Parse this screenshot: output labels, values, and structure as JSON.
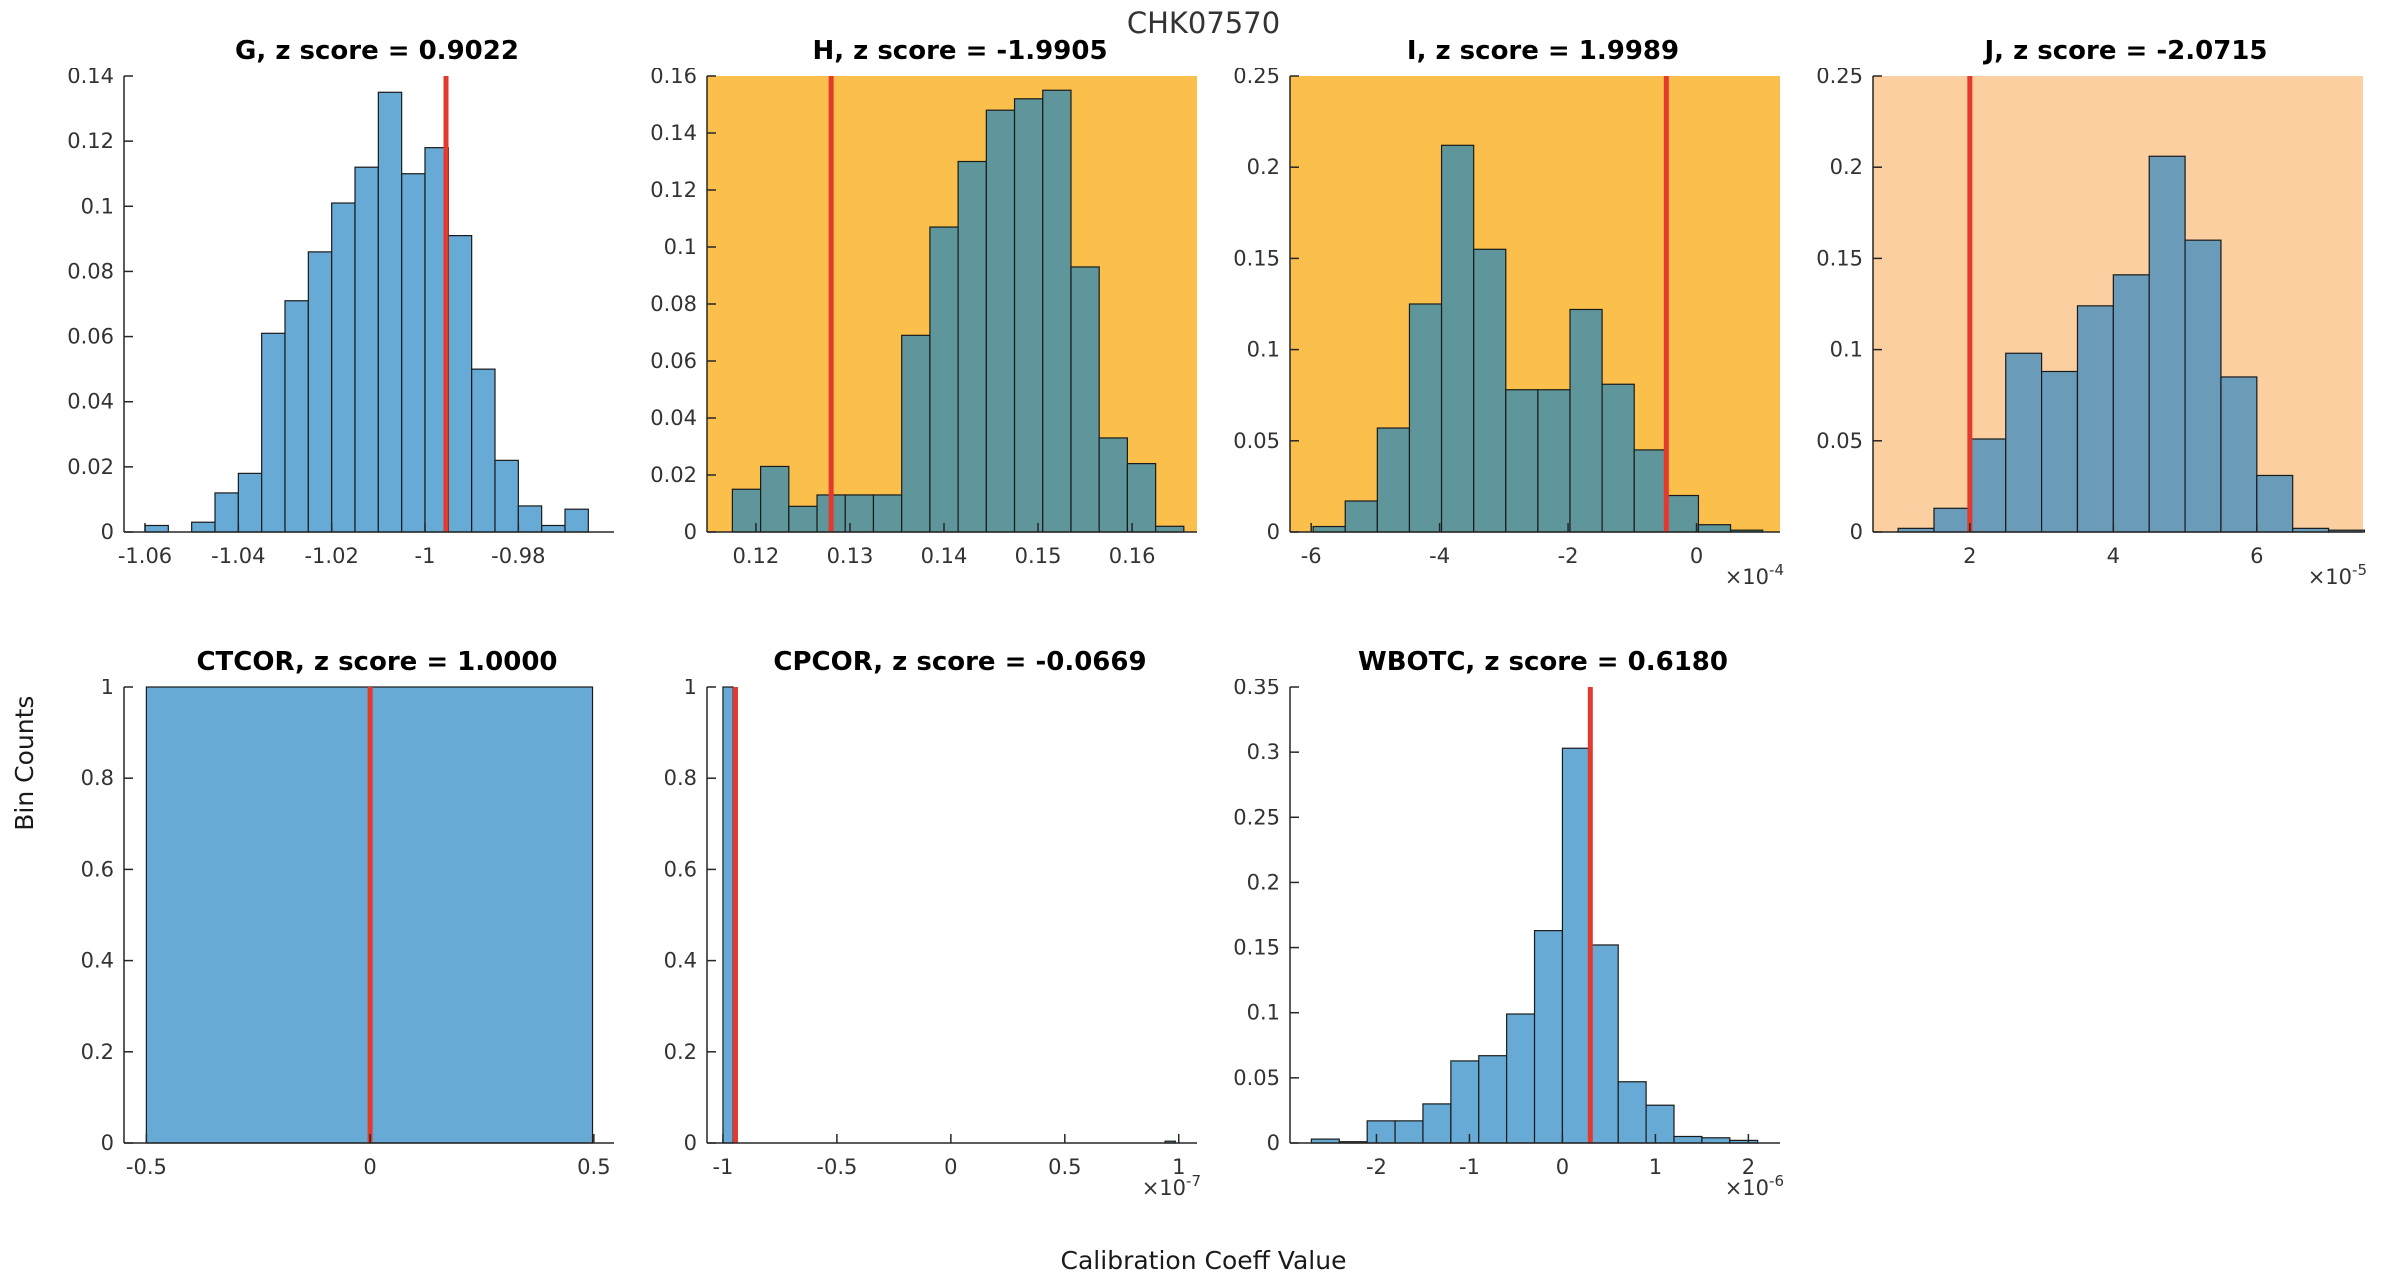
{
  "figure": {
    "title": "CHK07570",
    "xlabel": "Calibration Coeff Value",
    "ylabel": "Bin Counts"
  },
  "colors": {
    "bar_blue": "#67AAD5",
    "bar_teal_on_amber": "#5F969B",
    "bar_steel_on_peach": "#6A9BB8",
    "bg_amber": "#FBBF4B",
    "bg_peach": "#FCCFA0",
    "red_line": "#E43A2E",
    "bar_edge": "#1A1A1A",
    "axis": "#262626",
    "tick_text": "#333333"
  },
  "chart_data": [
    {
      "type": "bar",
      "name": "G",
      "title": "G, z score = 0.9022",
      "z_score": "0.9022",
      "bg": null,
      "bar_color": "#67AAD5",
      "xlim": [
        -1.0645,
        -0.9595
      ],
      "ylim": [
        0,
        0.14
      ],
      "x_start": -1.06,
      "bin_width": 0.005,
      "values": [
        0.002,
        0,
        0.003,
        0.012,
        0.018,
        0.061,
        0.071,
        0.086,
        0.101,
        0.112,
        0.135,
        0.11,
        0.118,
        0.091,
        0.05,
        0.022,
        0.008,
        0.002,
        0.007
      ],
      "xticks": [
        [
          -1.06,
          "-1.06"
        ],
        [
          -1.04,
          "-1.04"
        ],
        [
          -1.02,
          "-1.02"
        ],
        [
          -1,
          "-1"
        ],
        [
          -0.98,
          "-0.98"
        ]
      ],
      "yticks": [
        [
          0,
          "0"
        ],
        [
          0.02,
          "0.02"
        ],
        [
          0.04,
          "0.04"
        ],
        [
          0.06,
          "0.06"
        ],
        [
          0.08,
          "0.08"
        ],
        [
          0.1,
          "0.1"
        ],
        [
          0.12,
          "0.12"
        ],
        [
          0.14,
          "0.14"
        ]
      ],
      "x_exponent": null,
      "red_line": -0.9955
    },
    {
      "type": "bar",
      "name": "H",
      "title": "H, z score = -1.9905",
      "z_score": "-1.9905",
      "bg": "#FBBF4B",
      "bar_color": "#5F969B",
      "xlim": [
        0.1148,
        0.1669
      ],
      "ylim": [
        0,
        0.16
      ],
      "x_start": 0.1175,
      "bin_width": 0.003,
      "values": [
        0.015,
        0.023,
        0.009,
        0.013,
        0.013,
        0.013,
        0.069,
        0.107,
        0.13,
        0.148,
        0.152,
        0.155,
        0.093,
        0.033,
        0.024,
        0.002
      ],
      "xticks": [
        [
          0.12,
          "0.12"
        ],
        [
          0.13,
          "0.13"
        ],
        [
          0.14,
          "0.14"
        ],
        [
          0.15,
          "0.15"
        ],
        [
          0.16,
          "0.16"
        ]
      ],
      "yticks": [
        [
          0,
          "0"
        ],
        [
          0.02,
          "0.02"
        ],
        [
          0.04,
          "0.04"
        ],
        [
          0.06,
          "0.06"
        ],
        [
          0.08,
          "0.08"
        ],
        [
          0.1,
          "0.1"
        ],
        [
          0.12,
          "0.12"
        ],
        [
          0.14,
          "0.14"
        ],
        [
          0.16,
          "0.16"
        ]
      ],
      "x_exponent": null,
      "red_line": 0.128
    },
    {
      "type": "bar",
      "name": "I",
      "title": "I, z score = 1.9989",
      "z_score": "1.9989",
      "bg": "#FBBF4B",
      "bar_color": "#5F969B",
      "xlim": [
        -6.33,
        1.3
      ],
      "ylim": [
        0,
        0.25
      ],
      "x_start": -5.97,
      "bin_width": 0.5,
      "values": [
        0.003,
        0.017,
        0.057,
        0.125,
        0.212,
        0.155,
        0.078,
        0.078,
        0.122,
        0.081,
        0.045,
        0.02,
        0.004,
        0.001
      ],
      "xticks": [
        [
          -6,
          "-6"
        ],
        [
          -4,
          "-4"
        ],
        [
          -2,
          "-2"
        ],
        [
          0,
          "0"
        ]
      ],
      "yticks": [
        [
          0,
          "0"
        ],
        [
          0.05,
          "0.05"
        ],
        [
          0.1,
          "0.1"
        ],
        [
          0.15,
          "0.15"
        ],
        [
          0.2,
          "0.2"
        ],
        [
          0.25,
          "0.25"
        ]
      ],
      "x_exponent": "-4",
      "red_line": -0.47
    },
    {
      "type": "bar",
      "name": "J",
      "title": "J, z score = -2.0715",
      "z_score": "-2.0715",
      "bg": "#FCCFA0",
      "bar_color": "#6A9BB8",
      "xlim": [
        0.65,
        7.48
      ],
      "ylim": [
        0,
        0.25
      ],
      "x_start": 1.0,
      "bin_width": 0.5,
      "values": [
        0.002,
        0.013,
        0.051,
        0.098,
        0.088,
        0.124,
        0.141,
        0.206,
        0.16,
        0.085,
        0.031,
        0.002,
        0.001
      ],
      "xticks": [
        [
          2,
          "2"
        ],
        [
          4,
          "4"
        ],
        [
          6,
          "6"
        ]
      ],
      "yticks": [
        [
          0,
          "0"
        ],
        [
          0.05,
          "0.05"
        ],
        [
          0.1,
          "0.1"
        ],
        [
          0.15,
          "0.15"
        ],
        [
          0.2,
          "0.2"
        ],
        [
          0.25,
          "0.25"
        ]
      ],
      "x_exponent": "-5",
      "red_line": 2.0
    },
    {
      "type": "bar",
      "name": "CTCOR",
      "title": "CTCOR, z score = 1.0000",
      "z_score": "1.0000",
      "bg": null,
      "bar_color": "#67AAD5",
      "xlim": [
        -0.55,
        0.545
      ],
      "ylim": [
        0,
        1
      ],
      "x_start": -0.5,
      "bin_width": 0.997,
      "values": [
        1
      ],
      "xticks": [
        [
          -0.5,
          "-0.5"
        ],
        [
          0,
          "0"
        ],
        [
          0.5,
          "0.5"
        ]
      ],
      "yticks": [
        [
          0,
          "0"
        ],
        [
          0.2,
          "0.2"
        ],
        [
          0.4,
          "0.4"
        ],
        [
          0.6,
          "0.6"
        ],
        [
          0.8,
          "0.8"
        ],
        [
          1,
          "1"
        ]
      ],
      "x_exponent": null,
      "red_line": 0
    },
    {
      "type": "bar",
      "name": "CPCOR",
      "title": "CPCOR, z score = -0.0669",
      "z_score": "-0.0669",
      "bg": null,
      "bar_color": "#67AAD5",
      "xlim": [
        -1.07,
        1.08
      ],
      "ylim": [
        0,
        1
      ],
      "x_start": -1.0,
      "bin_width": 0.045,
      "values": [
        1
      ],
      "extra_bars": [
        {
          "x": 0.94,
          "w": 0.045,
          "h": 0.004
        }
      ],
      "xticks": [
        [
          -1,
          "-1"
        ],
        [
          -0.5,
          "-0.5"
        ],
        [
          0,
          "0"
        ],
        [
          0.5,
          "0.5"
        ],
        [
          1,
          "1"
        ]
      ],
      "yticks": [
        [
          0,
          "0"
        ],
        [
          0.2,
          "0.2"
        ],
        [
          0.4,
          "0.4"
        ],
        [
          0.6,
          "0.6"
        ],
        [
          0.8,
          "0.8"
        ],
        [
          1,
          "1"
        ]
      ],
      "x_exponent": "-7",
      "red_line": -0.945
    },
    {
      "type": "bar",
      "name": "WBOTC",
      "title": "WBOTC, z score = 0.6180",
      "z_score": "0.6180",
      "bg": null,
      "bar_color": "#67AAD5",
      "xlim": [
        -2.93,
        2.34
      ],
      "ylim": [
        0,
        0.35
      ],
      "x_start": -2.7,
      "bin_width": 0.3,
      "values": [
        0.003,
        0.001,
        0.017,
        0.017,
        0.03,
        0.063,
        0.067,
        0.099,
        0.163,
        0.303,
        0.152,
        0.047,
        0.029,
        0.005,
        0.004,
        0.002
      ],
      "xticks": [
        [
          -2,
          "-2"
        ],
        [
          -1,
          "-1"
        ],
        [
          0,
          "0"
        ],
        [
          1,
          "1"
        ],
        [
          2,
          "2"
        ]
      ],
      "yticks": [
        [
          0,
          "0"
        ],
        [
          0.05,
          "0.05"
        ],
        [
          0.1,
          "0.1"
        ],
        [
          0.15,
          "0.15"
        ],
        [
          0.2,
          "0.2"
        ],
        [
          0.25,
          "0.25"
        ],
        [
          0.3,
          "0.3"
        ],
        [
          0.35,
          "0.35"
        ]
      ],
      "x_exponent": "-6",
      "red_line": 0.3
    }
  ]
}
